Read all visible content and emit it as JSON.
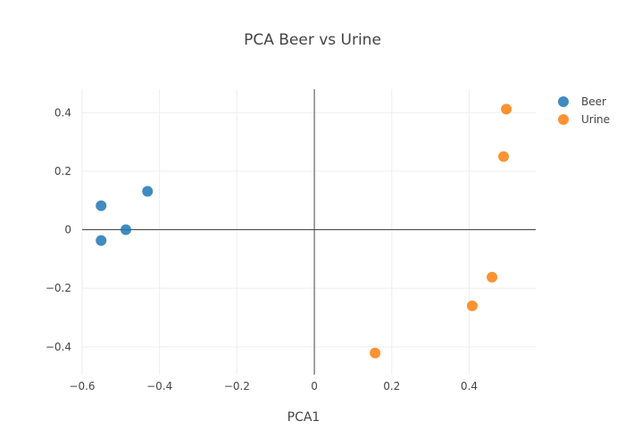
{
  "chart_data": {
    "type": "scatter",
    "title": "PCA Beer vs Urine",
    "xlabel": "PCA1",
    "ylabel": "",
    "xlim": [
      -0.6,
      0.572
    ],
    "ylim": [
      -0.495,
      0.48
    ],
    "xticks": [
      -0.6,
      -0.4,
      -0.2,
      0,
      0.2,
      0.4
    ],
    "xtick_labels": [
      "−0.6",
      "−0.4",
      "−0.2",
      "0",
      "0.2",
      "0.4"
    ],
    "yticks": [
      -0.4,
      -0.2,
      0,
      0.2,
      0.4
    ],
    "ytick_labels": [
      "−0.4",
      "−0.2",
      "0",
      "0.2",
      "0.4"
    ],
    "grid": true,
    "legend_position": "top-right",
    "series": [
      {
        "name": "Beer",
        "color": "#1f77b4",
        "x": [
          -0.551,
          -0.551,
          -0.487,
          -0.431
        ],
        "y": [
          0.082,
          -0.037,
          0.0,
          0.131
        ]
      },
      {
        "name": "Urine",
        "color": "#ff7f0e",
        "x": [
          0.496,
          0.489,
          0.459,
          0.408,
          0.157
        ],
        "y": [
          0.412,
          0.25,
          -0.162,
          -0.26,
          -0.421
        ]
      }
    ]
  }
}
